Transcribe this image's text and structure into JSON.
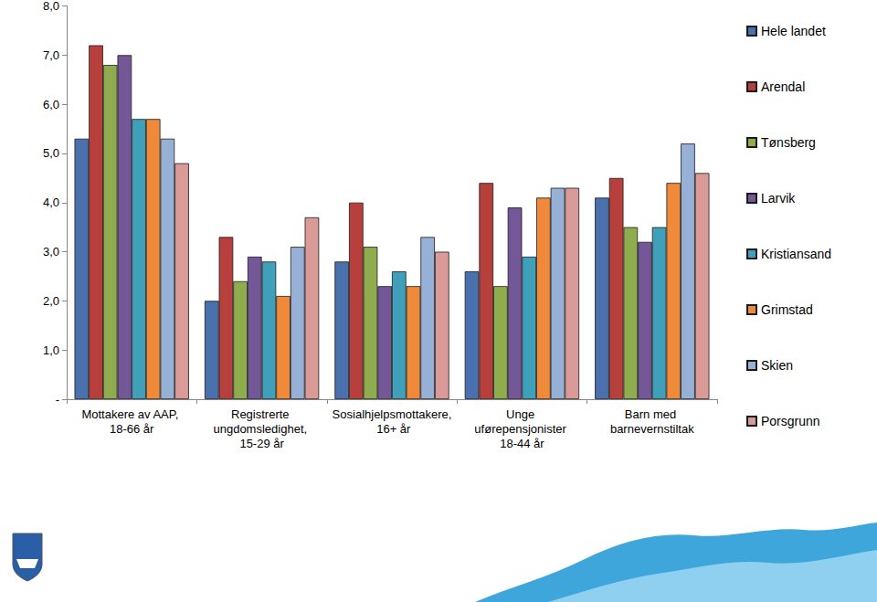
{
  "chart_data": {
    "type": "bar",
    "categories": [
      "Mottakere av AAP, 18-66 år",
      "Registrerte ungdomsledighet, 15-29 år",
      "Sosialhjelpsmottakere, 16+ år",
      "Unge uførepensjonister 18-44 år",
      "Barn med barnevernstiltak"
    ],
    "series": [
      {
        "name": "Hele landet",
        "color": "#4a70ad",
        "values": [
          5.3,
          2.0,
          2.8,
          2.6,
          4.1
        ]
      },
      {
        "name": "Arendal",
        "color": "#b8403c",
        "values": [
          7.2,
          3.3,
          4.0,
          4.4,
          4.5
        ]
      },
      {
        "name": "Tønsberg",
        "color": "#8fac4e",
        "values": [
          6.8,
          2.4,
          3.1,
          2.3,
          3.5
        ]
      },
      {
        "name": "Larvik",
        "color": "#735796",
        "values": [
          7.0,
          2.9,
          2.3,
          3.9,
          3.2
        ]
      },
      {
        "name": "Kristiansand",
        "color": "#40a0ba",
        "values": [
          5.7,
          2.8,
          2.6,
          2.9,
          3.5
        ]
      },
      {
        "name": "Grimstad",
        "color": "#ee8a3a",
        "values": [
          5.7,
          2.1,
          2.3,
          4.1,
          4.4
        ]
      },
      {
        "name": "Skien",
        "color": "#97b1d6",
        "values": [
          5.3,
          3.1,
          3.3,
          4.3,
          5.2
        ]
      },
      {
        "name": "Porsgrunn",
        "color": "#d99a98",
        "values": [
          4.8,
          3.7,
          3.0,
          4.3,
          4.6
        ]
      }
    ],
    "ylim": [
      0,
      8
    ],
    "yticks": [
      {
        "value": 0,
        "label": "-"
      },
      {
        "value": 1,
        "label": "1,0"
      },
      {
        "value": 2,
        "label": "2,0"
      },
      {
        "value": 3,
        "label": "3,0"
      },
      {
        "value": 4,
        "label": "4,0"
      },
      {
        "value": 5,
        "label": "5,0"
      },
      {
        "value": 6,
        "label": "6,0"
      },
      {
        "value": 7,
        "label": "7,0"
      },
      {
        "value": 8,
        "label": "8,0"
      }
    ],
    "grid": false,
    "legend": "right"
  }
}
